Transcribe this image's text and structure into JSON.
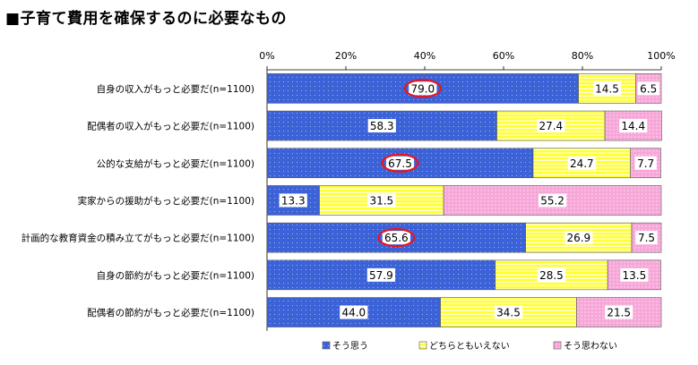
{
  "chart_data": {
    "type": "bar",
    "orientation": "horizontal",
    "stacked": true,
    "title": "■子育て費用を確保するのに必要なもの",
    "xlim": [
      0,
      100
    ],
    "x_tick_labels": [
      "0%",
      "20%",
      "40%",
      "60%",
      "80%",
      "100%"
    ],
    "categories": [
      "自身の収入がもっと必要だ(n=1100)",
      "配偶者の収入がもっと必要だ(n=1100)",
      "公的な支給がもっと必要だ(n=1100)",
      "実家からの援助がもっと必要だ(n=1100)",
      "計画的な教育資金の積み立てがもっと必要だ(n=1100)",
      "自身の節約がもっと必要だ(n=1100)",
      "配偶者の節約がもっと必要だ(n=1100)"
    ],
    "series": [
      {
        "name": "そう思う",
        "color": "#3c62d8",
        "pattern": "dots",
        "values": [
          79.0,
          58.3,
          67.5,
          13.3,
          65.6,
          57.9,
          44.0
        ],
        "labels": [
          "79.0",
          "58.3",
          "67.5",
          "13.3",
          "65.6",
          "57.9",
          "44.0"
        ]
      },
      {
        "name": "どちらともいえない",
        "color": "#ffff33",
        "pattern": "stripes",
        "values": [
          14.5,
          27.4,
          24.7,
          31.5,
          26.9,
          28.5,
          34.5
        ],
        "labels": [
          "14.5",
          "27.4",
          "24.7",
          "31.5",
          "26.9",
          "28.5",
          "34.5"
        ]
      },
      {
        "name": "そう思わない",
        "color": "#f7a6d8",
        "pattern": "dots",
        "values": [
          6.5,
          14.4,
          7.7,
          55.2,
          7.5,
          13.5,
          21.5
        ],
        "labels": [
          "6.5",
          "14.4",
          "7.7",
          "55.2",
          "7.5",
          "13.5",
          "21.5"
        ]
      }
    ],
    "highlighted_rows": [
      0,
      2,
      4
    ],
    "highlight_color": "#e8141c",
    "legend_position": "bottom",
    "grid": false
  }
}
